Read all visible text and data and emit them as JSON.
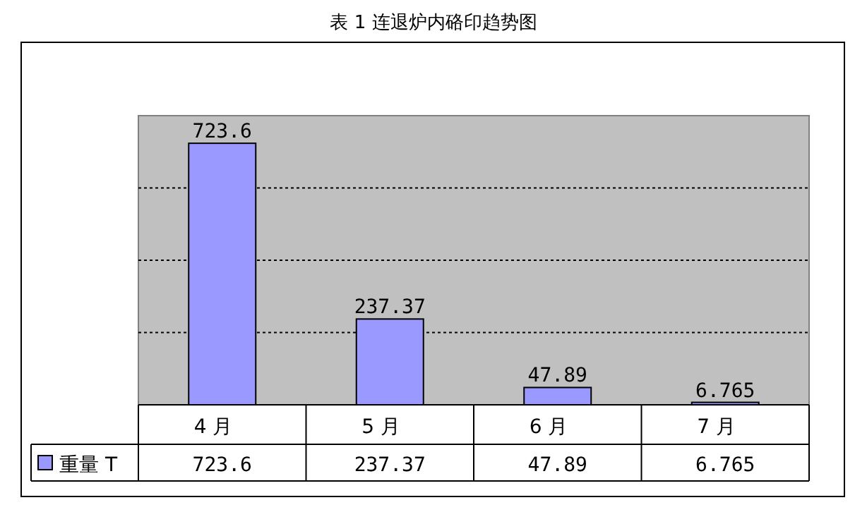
{
  "chart_data": {
    "type": "bar",
    "title": "表 1 连退炉内硌印趋势图",
    "categories": [
      "4 月",
      "5 月",
      "6 月",
      "7 月"
    ],
    "series": [
      {
        "name": "重量 T",
        "color": "#9999ff",
        "values": [
          723.6,
          237.37,
          47.89,
          6.765
        ]
      }
    ],
    "annotations": [
      {
        "text": "723.6",
        "x": "4 月",
        "y": 723.6
      },
      {
        "text": "237.37",
        "x": "5 月",
        "y": 237.37
      },
      {
        "text": "47.89",
        "x": "6 月",
        "y": 47.89
      },
      {
        "text": "6.765",
        "x": "7 月",
        "y": 6.765
      }
    ],
    "ylim": [
      0,
      800
    ],
    "yticks": [
      {
        "value": 200,
        "label": null
      },
      {
        "value": 400,
        "label": null
      },
      {
        "value": 600,
        "label": null
      }
    ],
    "grid": "y",
    "data_labels": true,
    "legend": "bottom left"
  }
}
